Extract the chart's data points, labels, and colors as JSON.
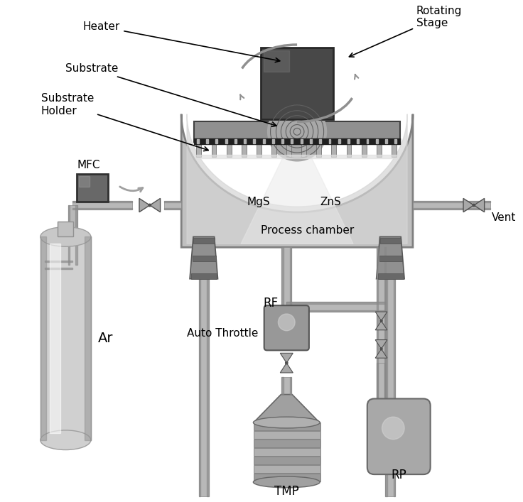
{
  "bg_color": "#ffffff",
  "labels": {
    "heater": "Heater",
    "substrate": "Substrate",
    "substrate_holder": "Substrate\nHolder",
    "rotating_stage": "Rotating\nStage",
    "mfc": "MFC",
    "ar": "Ar",
    "vent": "Vent",
    "mgs": "MgS",
    "zns": "ZnS",
    "process_chamber": "Process chamber",
    "rf": "RF",
    "auto_throttle": "Auto Throttle",
    "tmp": "TMP",
    "rp": "RP"
  },
  "label_fontsize": 11
}
